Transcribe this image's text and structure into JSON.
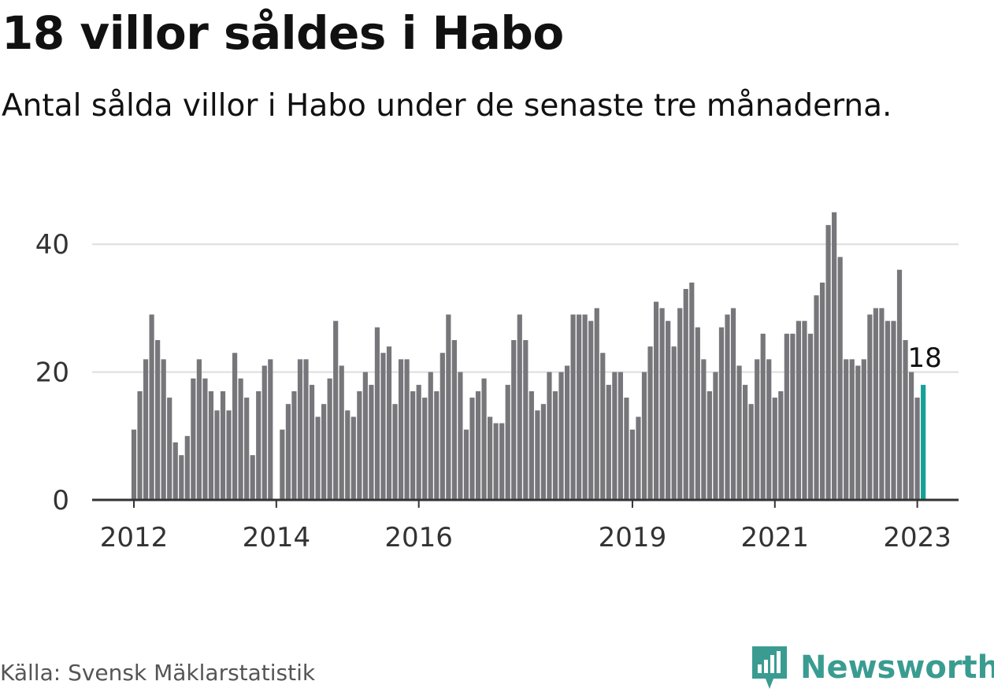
{
  "title": "18 villor såldes i Habo",
  "subtitle": "Antal sålda villor i Habo under de senaste tre månaderna.",
  "source": "Källa: Svensk Mäklarstatistik",
  "brand": {
    "name": "Newsworthy",
    "icon": "newsworthy-logo-icon",
    "color": "#3a9c91"
  },
  "colors": {
    "bar": "#77767b",
    "highlight": "#17a096",
    "grid": "#dddddd",
    "axis": "#333333"
  },
  "chart_data": {
    "type": "bar",
    "title": "18 villor såldes i Habo",
    "subtitle": "Antal sålda villor i Habo under de senaste tre månaderna.",
    "x_start": "2012-01",
    "x_ticks": [
      "2012",
      "2014",
      "2016",
      "2019",
      "2021",
      "2023"
    ],
    "y_ticks": [
      0,
      20,
      40
    ],
    "ylim": [
      0,
      47
    ],
    "grid": true,
    "highlight_last": true,
    "last_value_label": "18",
    "values": [
      11,
      17,
      22,
      29,
      25,
      22,
      16,
      9,
      7,
      10,
      19,
      22,
      19,
      17,
      14,
      17,
      14,
      23,
      19,
      16,
      7,
      17,
      21,
      22,
      null,
      11,
      15,
      17,
      22,
      22,
      18,
      13,
      15,
      19,
      28,
      21,
      14,
      13,
      17,
      20,
      18,
      27,
      23,
      24,
      15,
      22,
      22,
      17,
      18,
      16,
      20,
      17,
      23,
      29,
      25,
      20,
      11,
      16,
      17,
      19,
      13,
      12,
      12,
      18,
      25,
      29,
      25,
      17,
      14,
      15,
      20,
      17,
      20,
      21,
      29,
      29,
      29,
      28,
      30,
      23,
      18,
      20,
      20,
      16,
      11,
      13,
      20,
      24,
      31,
      30,
      28,
      24,
      30,
      33,
      34,
      27,
      22,
      17,
      20,
      27,
      29,
      30,
      21,
      18,
      15,
      22,
      26,
      22,
      16,
      17,
      26,
      26,
      28,
      28,
      26,
      32,
      34,
      43,
      45,
      38,
      22,
      22,
      21,
      22,
      29,
      30,
      30,
      28,
      28,
      36,
      25,
      20,
      16,
      18
    ]
  }
}
